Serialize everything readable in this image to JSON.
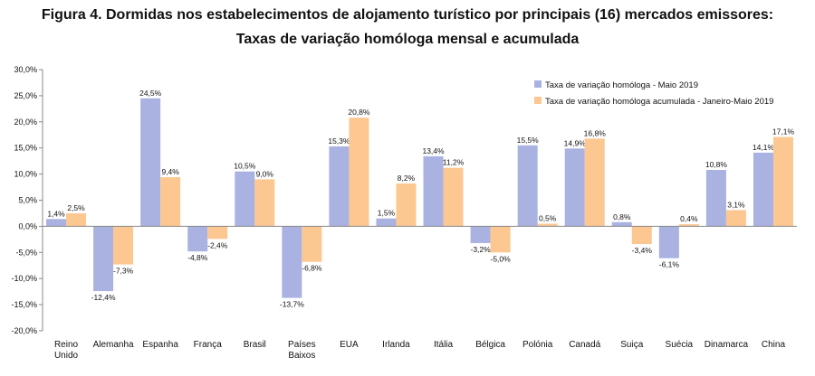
{
  "title_line1": "Figura 4. Dormidas nos estabelecimentos de alojamento turístico por principais (16) mercados emissores:",
  "title_line2": "Taxas de variação homóloga mensal e acumulada",
  "chart_data": {
    "type": "bar",
    "title": "Figura 4. Dormidas nos estabelecimentos de alojamento turístico por principais (16) mercados emissores:",
    "subtitle": "Taxas de variação homóloga mensal e acumulada",
    "categories": [
      [
        "Reino",
        "Unido"
      ],
      [
        "Alemanha"
      ],
      [
        "Espanha"
      ],
      [
        "França"
      ],
      [
        "Brasil"
      ],
      [
        "Países",
        "Baixos"
      ],
      [
        "EUA"
      ],
      [
        "Irlanda"
      ],
      [
        "Itália"
      ],
      [
        "Bélgica"
      ],
      [
        "Polónia"
      ],
      [
        "Canadá"
      ],
      [
        "Suiça"
      ],
      [
        "Suécia"
      ],
      [
        "Dinamarca"
      ],
      [
        "China"
      ]
    ],
    "series": [
      {
        "name": "Taxa de variação homóloga - Maio 2019",
        "color": "#a9b2e0",
        "values": [
          1.4,
          -12.4,
          24.5,
          -4.8,
          10.5,
          -13.7,
          15.3,
          1.5,
          13.4,
          -3.2,
          15.5,
          14.9,
          0.8,
          -6.1,
          10.8,
          14.1
        ],
        "labels": [
          "1,4%",
          "-12,4%",
          "24,5%",
          "-4,8%",
          "10,5%",
          "-13,7%",
          "15,3%",
          "1,5%",
          "13,4%",
          "-3,2%",
          "15,5%",
          "14,9%",
          "0,8%",
          "-6,1%",
          "10,8%",
          "14,1%"
        ]
      },
      {
        "name": "Taxa de variação homóloga acumulada - Janeiro-Maio 2019",
        "color": "#fcc791",
        "values": [
          2.5,
          -7.3,
          9.4,
          -2.4,
          9.0,
          -6.8,
          20.8,
          8.2,
          11.2,
          -5.0,
          0.5,
          16.8,
          -3.4,
          0.4,
          3.1,
          17.1
        ],
        "labels": [
          "2,5%",
          "-7,3%",
          "9,4%",
          "-2,4%",
          "9,0%",
          "-6,8%",
          "20,8%",
          "8,2%",
          "11,2%",
          "-5,0%",
          "0,5%",
          "16,8%",
          "-3,4%",
          "0,4%",
          "3,1%",
          "17,1%"
        ]
      }
    ],
    "ylim": [
      -20,
      30
    ],
    "yticks": [
      30,
      25,
      20,
      15,
      10,
      5,
      0,
      -5,
      -10,
      -15,
      -20
    ],
    "ytick_labels": [
      "30,0%",
      "25,0%",
      "20,0%",
      "15,0%",
      "10,0%",
      "5,0%",
      "0,0%",
      "-5,0%",
      "-10,0%",
      "-15,0%",
      "-20,0%"
    ],
    "legend_position": "top-right",
    "grid": false
  }
}
